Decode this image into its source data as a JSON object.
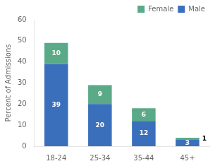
{
  "chart_data": {
    "type": "bar",
    "stacked": true,
    "categories": [
      "18-24",
      "25-34",
      "35-44",
      "45+"
    ],
    "series": [
      {
        "name": "Male",
        "color": "#3a6fbc",
        "values": [
          39,
          20,
          12,
          3
        ]
      },
      {
        "name": "Female",
        "color": "#5aaa88",
        "values": [
          10,
          9,
          6,
          1
        ]
      }
    ],
    "ylabel": "Percent of Admissions",
    "ylim": [
      0,
      60
    ],
    "yticks": [
      0,
      10,
      20,
      30,
      40,
      50,
      60
    ],
    "grid": false,
    "legend": "upper right",
    "data_labels": true
  }
}
